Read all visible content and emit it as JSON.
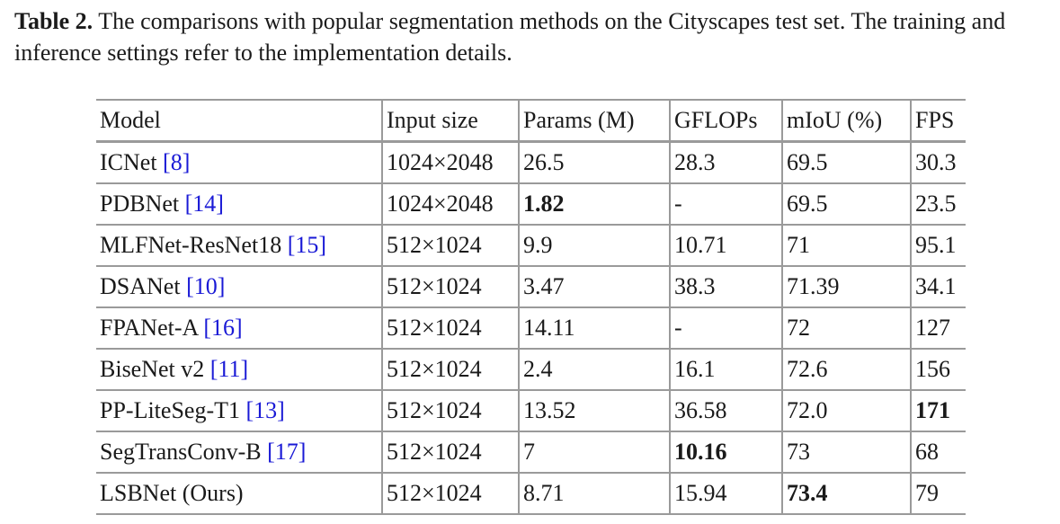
{
  "caption": {
    "label": "Table 2.",
    "text": " The comparisons with popular segmentation methods on the Cityscapes test set. The training and inference settings refer to the implementation details."
  },
  "table": {
    "headers": [
      "Model",
      "Input size",
      "Params (M)",
      "GFLOPs",
      "mIoU (%)",
      "FPS"
    ],
    "rows": [
      {
        "model": "ICNet ",
        "ref": "[8]",
        "input": "1024×2048",
        "params": "26.5",
        "gflops": "28.3",
        "miou": "69.5",
        "fps": "30.3",
        "bold": []
      },
      {
        "model": "PDBNet ",
        "ref": "[14]",
        "input": "1024×2048",
        "params": "1.82",
        "gflops": "-",
        "miou": "69.5",
        "fps": "23.5",
        "bold": [
          "params"
        ]
      },
      {
        "model": "MLFNet-ResNet18 ",
        "ref": "[15]",
        "input": "512×1024",
        "params": "9.9",
        "gflops": "10.71",
        "miou": "71",
        "fps": "95.1",
        "bold": []
      },
      {
        "model": "DSANet ",
        "ref": "[10]",
        "input": "512×1024",
        "params": "3.47",
        "gflops": "38.3",
        "miou": "71.39",
        "fps": "34.1",
        "bold": []
      },
      {
        "model": "FPANet-A ",
        "ref": "[16]",
        "input": "512×1024",
        "params": "14.11",
        "gflops": "-",
        "miou": "72",
        "fps": "127",
        "bold": []
      },
      {
        "model": "BiseNet v2 ",
        "ref": "[11]",
        "input": "512×1024",
        "params": "2.4",
        "gflops": "16.1",
        "miou": "72.6",
        "fps": "156",
        "bold": []
      },
      {
        "model": "PP-LiteSeg-T1 ",
        "ref": "[13]",
        "input": "512×1024",
        "params": "13.52",
        "gflops": "36.58",
        "miou": "72.0",
        "fps": "171",
        "bold": [
          "fps"
        ]
      },
      {
        "model": "SegTransConv-B ",
        "ref": "[17]",
        "input": "512×1024",
        "params": "7",
        "gflops": "10.16",
        "miou": "73",
        "fps": "68",
        "bold": [
          "gflops"
        ]
      },
      {
        "model": "LSBNet (Ours)",
        "ref": "",
        "input": "512×1024",
        "params": "8.71",
        "gflops": "15.94",
        "miou": "73.4",
        "fps": "79",
        "bold": [
          "miou"
        ]
      }
    ]
  }
}
